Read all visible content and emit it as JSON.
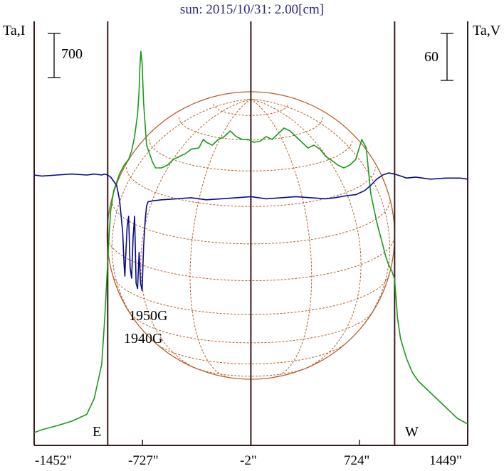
{
  "title": "sun: 2015/10/31: 2.00[cm]",
  "left_axis_label": "Ta,I",
  "right_axis_label": "Ta,V",
  "scale_bar_left": "700",
  "scale_bar_right": "60",
  "limb_labels": {
    "east": "E",
    "west": "W"
  },
  "annotations": [
    "1950G",
    "1940G"
  ],
  "colors": {
    "intensity": "#1a9a1a",
    "polarization": "#0a0a8c",
    "grid": "#b5602a",
    "frame": "#3a1a1a",
    "title": "#2a2a80"
  },
  "chart_data": {
    "type": "line",
    "title": "sun: 2015/10/31: 2.00[cm]",
    "x_tick_labels": [
      "-1452\"",
      "-727\"",
      "-2\"",
      "724\"",
      "1449\""
    ],
    "x_ticks_arcsec": [
      -1452,
      -727,
      -2,
      724,
      1449
    ],
    "xlim": [
      -1452,
      1449
    ],
    "limb_lines_arcsec": [
      -960,
      -2,
      960
    ],
    "series": [
      {
        "name": "Ta,I",
        "color": "#1a9a1a",
        "x": [
          -1452,
          -1400,
          -1300,
          -1200,
          -1100,
          -1050,
          -1000,
          -980,
          -960,
          -950,
          -940,
          -920,
          -900,
          -880,
          -850,
          -820,
          -800,
          -780,
          -760,
          -750,
          -745,
          -738,
          -730,
          -720,
          -700,
          -680,
          -660,
          -640,
          -600,
          -560,
          -520,
          -480,
          -440,
          -400,
          -350,
          -320,
          -300,
          -260,
          -220,
          -180,
          -140,
          -100,
          -60,
          -20,
          20,
          60,
          100,
          140,
          180,
          220,
          260,
          300,
          340,
          380,
          420,
          460,
          500,
          540,
          580,
          620,
          660,
          700,
          740,
          770,
          800,
          840,
          880,
          900,
          920,
          940,
          960,
          980,
          1000,
          1040,
          1080,
          1120,
          1160,
          1200,
          1260,
          1320,
          1380,
          1449
        ],
        "y": [
          0,
          50,
          120,
          200,
          320,
          600,
          1200,
          2000,
          3000,
          3500,
          3900,
          4250,
          4400,
          4550,
          4700,
          4800,
          4950,
          5200,
          5600,
          6000,
          6400,
          6700,
          6500,
          5800,
          5050,
          4900,
          4750,
          4650,
          4650,
          4700,
          4800,
          4850,
          4900,
          4980,
          5000,
          5150,
          5100,
          5050,
          5150,
          5200,
          5300,
          5200,
          5150,
          5150,
          5100,
          5120,
          5200,
          5150,
          5250,
          5350,
          5300,
          5200,
          5100,
          5000,
          5050,
          4980,
          4850,
          4780,
          4700,
          4650,
          4700,
          4800,
          5150,
          5000,
          4200,
          3700,
          3300,
          3100,
          2950,
          2850,
          2700,
          2000,
          1650,
          1300,
          1050,
          900,
          800,
          700,
          550,
          400,
          250,
          150
        ]
      },
      {
        "name": "Ta,V",
        "color": "#0a0a8c",
        "x": [
          -1452,
          -1400,
          -1300,
          -1200,
          -1100,
          -1050,
          -1000,
          -980,
          -960,
          -940,
          -900,
          -880,
          -860,
          -850,
          -845,
          -840,
          -830,
          -820,
          -810,
          -800,
          -790,
          -780,
          -770,
          -760,
          -750,
          -740,
          -730,
          -720,
          -710,
          -700,
          -690,
          -660,
          -600,
          -500,
          -400,
          -300,
          -200,
          -100,
          0,
          100,
          200,
          300,
          400,
          500,
          560,
          600,
          640,
          700,
          760,
          800,
          840,
          880,
          920,
          960,
          1000,
          1040,
          1100,
          1200,
          1300,
          1400,
          1449
        ],
        "y": [
          0,
          -1,
          0,
          1,
          0,
          1,
          0,
          1,
          0,
          -2,
          -10,
          -25,
          -55,
          -88,
          -98,
          -80,
          -50,
          -40,
          -90,
          -100,
          -60,
          -40,
          -105,
          -110,
          -75,
          -105,
          -112,
          -70,
          -45,
          -30,
          -26,
          -25,
          -24,
          -23,
          -22,
          -24,
          -23,
          -22,
          -21,
          -23,
          -22,
          -21,
          -22,
          -23,
          -22,
          -21,
          -20,
          -19,
          -15,
          -10,
          -4,
          0,
          2,
          1,
          -1,
          -3,
          -2,
          -4,
          -3,
          -3,
          -4
        ]
      }
    ]
  }
}
